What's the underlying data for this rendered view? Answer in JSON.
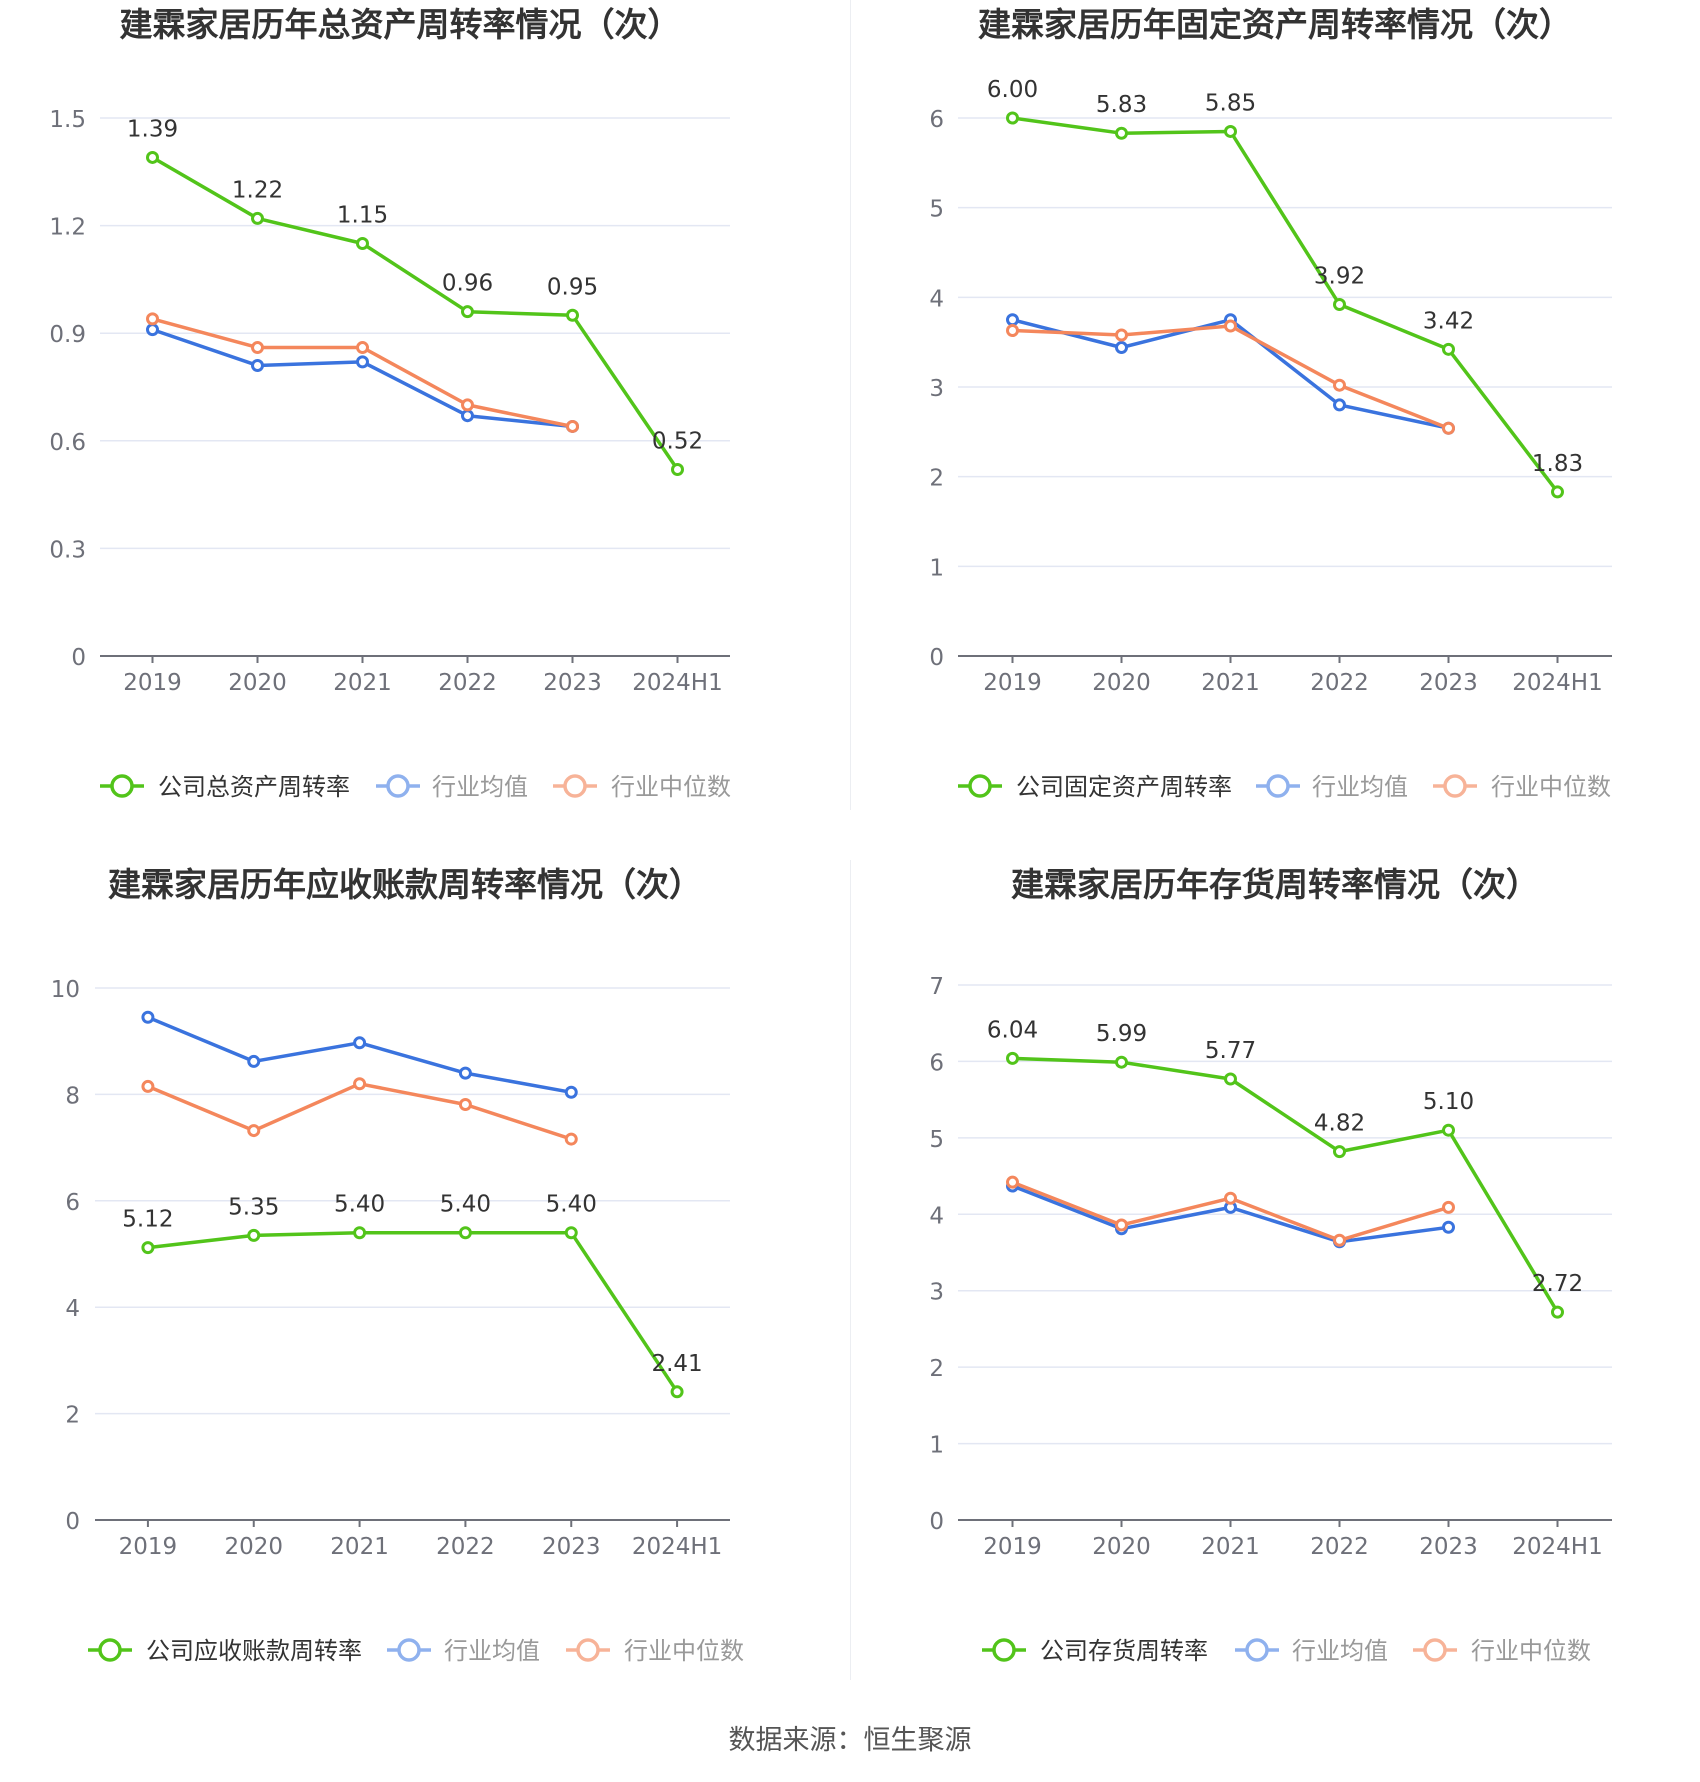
{
  "charts": [
    {
      "title": "建霖家居历年总资产周转率情况（次）",
      "legend": [
        "公司总资产周转率",
        "行业均值",
        "行业中位数"
      ],
      "yticks": [
        "0",
        "0.3",
        "0.6",
        "0.9",
        "1.2",
        "1.5"
      ],
      "xticks": [
        "2019",
        "2020",
        "2021",
        "2022",
        "2023",
        "2024H1"
      ]
    },
    {
      "title": "建霖家居历年固定资产周转率情况（次）",
      "legend": [
        "公司固定资产周转率",
        "行业均值",
        "行业中位数"
      ],
      "yticks": [
        "0",
        "1",
        "2",
        "3",
        "4",
        "5",
        "6"
      ],
      "xticks": [
        "2019",
        "2020",
        "2021",
        "2022",
        "2023",
        "2024H1"
      ]
    },
    {
      "title": "建霖家居历年应收账款周转率情况（次）",
      "legend": [
        "公司应收账款周转率",
        "行业均值",
        "行业中位数"
      ],
      "yticks": [
        "0",
        "2",
        "4",
        "6",
        "8",
        "10"
      ],
      "xticks": [
        "2019",
        "2020",
        "2021",
        "2022",
        "2023",
        "2024H1"
      ]
    },
    {
      "title": "建霖家居历年存货周转率情况（次）",
      "legend": [
        "公司存货周转率",
        "行业均值",
        "行业中位数"
      ],
      "yticks": [
        "0",
        "1",
        "2",
        "3",
        "4",
        "5",
        "6",
        "7"
      ],
      "xticks": [
        "2019",
        "2020",
        "2021",
        "2022",
        "2023",
        "2024H1"
      ]
    }
  ],
  "source": "数据来源：恒生聚源",
  "colors": {
    "company": "#52c41a",
    "average": "#3a73de",
    "median": "#f4875c",
    "legend_average": "#8fb1ee",
    "legend_median": "#f7b398"
  },
  "chart_data": [
    {
      "type": "line",
      "title": "建霖家居历年总资产周转率情况（次）",
      "categories": [
        "2019",
        "2020",
        "2021",
        "2022",
        "2023",
        "2024H1"
      ],
      "ylim": [
        0,
        1.5
      ],
      "grid": true,
      "legend_position": "bottom",
      "series": [
        {
          "name": "公司总资产周转率",
          "values": [
            1.39,
            1.22,
            1.15,
            0.96,
            0.95,
            0.52
          ],
          "labels": [
            "1.39",
            "1.22",
            "1.15",
            "0.96",
            "0.95",
            "0.52"
          ]
        },
        {
          "name": "行业均值",
          "values": [
            0.91,
            0.81,
            0.82,
            0.67,
            0.64,
            null
          ]
        },
        {
          "name": "行业中位数",
          "values": [
            0.94,
            0.86,
            0.86,
            0.7,
            0.64,
            null
          ]
        }
      ]
    },
    {
      "type": "line",
      "title": "建霖家居历年固定资产周转率情况（次）",
      "categories": [
        "2019",
        "2020",
        "2021",
        "2022",
        "2023",
        "2024H1"
      ],
      "ylim": [
        0,
        6
      ],
      "grid": true,
      "legend_position": "bottom",
      "series": [
        {
          "name": "公司固定资产周转率",
          "values": [
            6.0,
            5.83,
            5.85,
            3.92,
            3.42,
            1.83
          ],
          "labels": [
            "6.00",
            "5.83",
            "5.85",
            "3.92",
            "3.42",
            "1.83"
          ]
        },
        {
          "name": "行业均值",
          "values": [
            3.75,
            3.44,
            3.75,
            2.8,
            2.54,
            null
          ]
        },
        {
          "name": "行业中位数",
          "values": [
            3.63,
            3.58,
            3.68,
            3.02,
            2.54,
            null
          ]
        }
      ]
    },
    {
      "type": "line",
      "title": "建霖家居历年应收账款周转率情况（次）",
      "categories": [
        "2019",
        "2020",
        "2021",
        "2022",
        "2023",
        "2024H1"
      ],
      "ylim": [
        0,
        10
      ],
      "grid": true,
      "legend_position": "bottom",
      "series": [
        {
          "name": "公司应收账款周转率",
          "values": [
            5.12,
            5.35,
            5.4,
            5.4,
            5.4,
            2.41
          ],
          "labels": [
            "5.12",
            "5.35",
            "5.40",
            "5.40",
            "5.40",
            "2.41"
          ]
        },
        {
          "name": "行业均值",
          "values": [
            9.45,
            8.62,
            8.97,
            8.4,
            8.04,
            null
          ]
        },
        {
          "name": "行业中位数",
          "values": [
            8.15,
            7.32,
            8.2,
            7.81,
            7.16,
            null
          ]
        }
      ]
    },
    {
      "type": "line",
      "title": "建霖家居历年存货周转率情况（次）",
      "categories": [
        "2019",
        "2020",
        "2021",
        "2022",
        "2023",
        "2024H1"
      ],
      "ylim": [
        0,
        7
      ],
      "grid": true,
      "legend_position": "bottom",
      "series": [
        {
          "name": "公司存货周转率",
          "values": [
            6.04,
            5.99,
            5.77,
            4.82,
            5.1,
            2.72
          ],
          "labels": [
            "6.04",
            "5.99",
            "5.77",
            "4.82",
            "5.10",
            "2.72"
          ]
        },
        {
          "name": "行业均值",
          "values": [
            4.37,
            3.81,
            4.09,
            3.64,
            3.83,
            null
          ]
        },
        {
          "name": "行业中位数",
          "values": [
            4.42,
            3.86,
            4.21,
            3.66,
            4.09,
            null
          ]
        }
      ]
    }
  ]
}
